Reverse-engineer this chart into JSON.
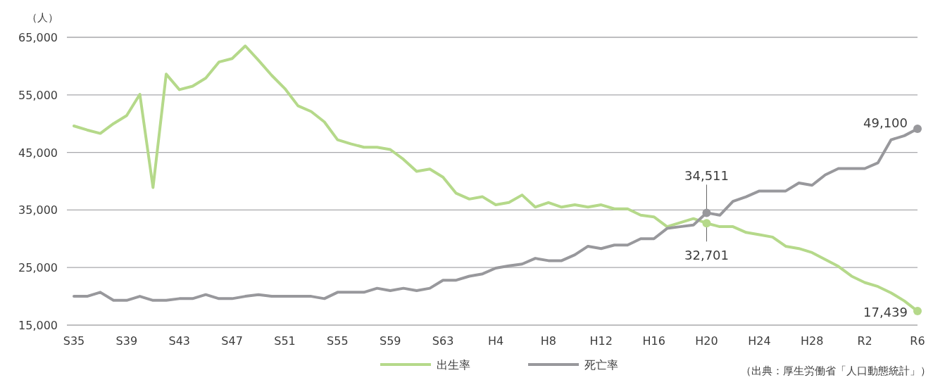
{
  "chart_data": {
    "type": "line",
    "ylabel": "（人）",
    "categories": [
      "S35",
      null,
      null,
      null,
      "S39",
      null,
      null,
      null,
      "S43",
      null,
      null,
      null,
      "S47",
      null,
      null,
      null,
      "S51",
      null,
      null,
      null,
      "S55",
      null,
      null,
      null,
      "S59",
      null,
      null,
      null,
      "S63",
      null,
      null,
      null,
      "H4",
      null,
      null,
      null,
      "H8",
      null,
      null,
      null,
      "H12",
      null,
      null,
      null,
      "H16",
      null,
      null,
      null,
      "H20",
      null,
      null,
      null,
      "H24",
      null,
      null,
      null,
      "H28",
      null,
      null,
      null,
      "R2",
      null,
      null,
      null,
      "R6"
    ],
    "series": [
      {
        "name": "出生率",
        "color": "#b5d98a",
        "values": [
          49600,
          48900,
          48300,
          50000,
          51400,
          55100,
          38900,
          58600,
          55900,
          56500,
          57900,
          60700,
          61300,
          63500,
          61000,
          58400,
          56100,
          53100,
          52100,
          50300,
          47200,
          46500,
          45900,
          45900,
          45500,
          43800,
          41700,
          42100,
          40700,
          37900,
          36900,
          37300,
          35900,
          36300,
          37600,
          35500,
          36300,
          35500,
          35900,
          35500,
          35900,
          35200,
          35200,
          34100,
          33800,
          32100,
          32800,
          33500,
          32701,
          32100,
          32100,
          31100,
          30700,
          30300,
          28700,
          28300,
          27600,
          26400,
          25200,
          23500,
          22400,
          21700,
          20600,
          19200,
          17439
        ],
        "value_labels": [
          null,
          null,
          null,
          null,
          null,
          null,
          null,
          null,
          null,
          null,
          null,
          null,
          null,
          null,
          null,
          null,
          null,
          null,
          null,
          null,
          null,
          null,
          null,
          null,
          null,
          null,
          null,
          null,
          null,
          null,
          null,
          null,
          null,
          null,
          null,
          null,
          null,
          null,
          null,
          null,
          null,
          null,
          null,
          null,
          null,
          null,
          null,
          null,
          "32,701",
          null,
          null,
          null,
          null,
          null,
          null,
          null,
          null,
          null,
          null,
          null,
          null,
          null,
          null,
          null,
          "17,439"
        ]
      },
      {
        "name": "死亡率",
        "color": "#98989c",
        "values": [
          20000,
          20000,
          20700,
          19300,
          19300,
          20000,
          19300,
          19300,
          19600,
          19600,
          20300,
          19600,
          19600,
          20000,
          20300,
          20000,
          20000,
          20000,
          20000,
          19600,
          20700,
          20700,
          20700,
          21400,
          21000,
          21400,
          21000,
          21400,
          22800,
          22800,
          23500,
          23900,
          24900,
          25300,
          25600,
          26600,
          26200,
          26200,
          27200,
          28700,
          28300,
          28900,
          28900,
          30000,
          30000,
          31800,
          32100,
          32400,
          34511,
          34100,
          36500,
          37300,
          38300,
          38300,
          38300,
          39700,
          39300,
          41100,
          42200,
          42200,
          42200,
          43200,
          47200,
          47900,
          49100
        ],
        "value_labels": [
          null,
          null,
          null,
          null,
          null,
          null,
          null,
          null,
          null,
          null,
          null,
          null,
          null,
          null,
          null,
          null,
          null,
          null,
          null,
          null,
          null,
          null,
          null,
          null,
          null,
          null,
          null,
          null,
          null,
          null,
          null,
          null,
          null,
          null,
          null,
          null,
          null,
          null,
          null,
          null,
          null,
          null,
          null,
          null,
          null,
          null,
          null,
          null,
          "34,511",
          null,
          null,
          null,
          null,
          null,
          null,
          null,
          null,
          null,
          null,
          null,
          null,
          null,
          null,
          null,
          "49,100"
        ]
      }
    ],
    "ylim": [
      15000,
      65000
    ],
    "yticks": [
      {
        "value": 15000,
        "label": "15,000"
      },
      {
        "value": 25000,
        "label": "25,000"
      },
      {
        "value": 35000,
        "label": "35,000"
      },
      {
        "value": 45000,
        "label": "45,000"
      },
      {
        "value": 55000,
        "label": "55,000"
      },
      {
        "value": 65000,
        "label": "65,000"
      }
    ],
    "grid": "y",
    "legend": "bottom",
    "annotations": [
      "（出典：厚生労働省「人口動態統計」）"
    ]
  }
}
